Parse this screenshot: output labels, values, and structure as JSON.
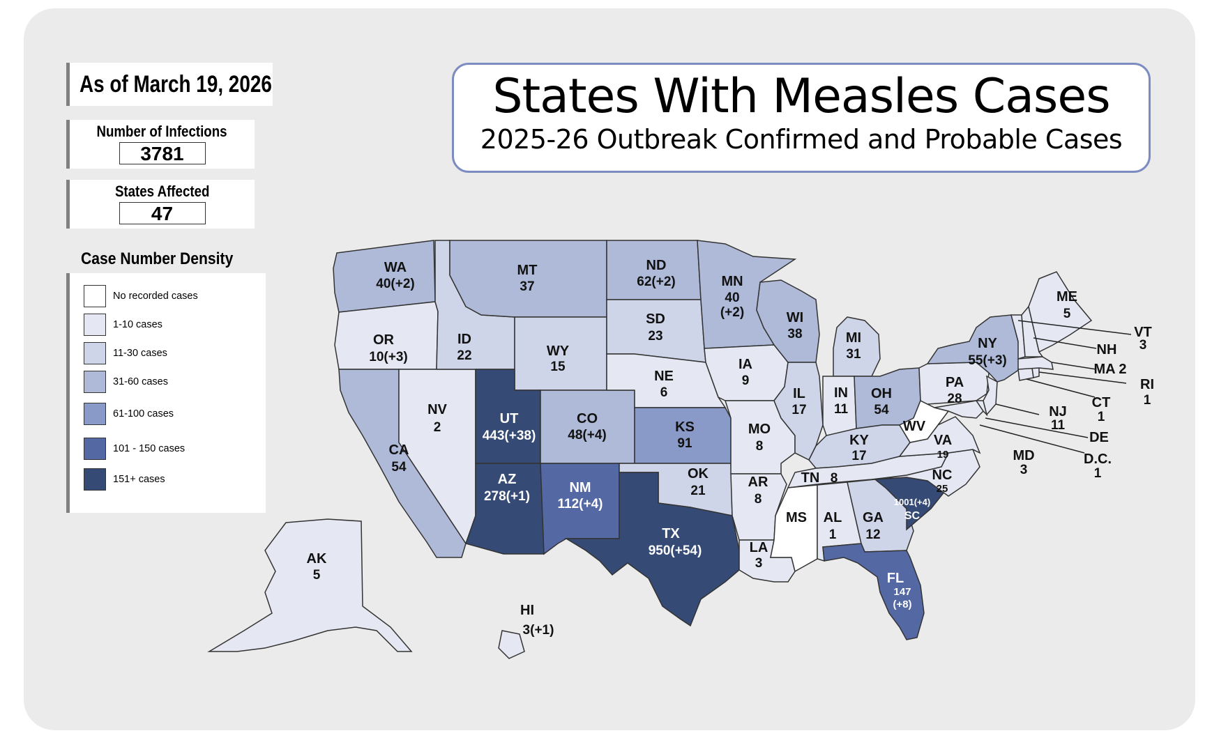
{
  "as_of": "As of March 19, 2026",
  "infections": {
    "label": "Number of Infections",
    "value": "3781"
  },
  "states_affected": {
    "label": "States Affected",
    "value": "47"
  },
  "legend": {
    "title": "Case Number Density",
    "items": [
      {
        "label": "No recorded cases",
        "color": "#ffffff"
      },
      {
        "label": "1-10 cases",
        "color": "#e5e8f2"
      },
      {
        "label": "11-30 cases",
        "color": "#cfd5e8"
      },
      {
        "label": "31-60 cases",
        "color": "#aebad8"
      },
      {
        "label": "61-100 cases",
        "color": "#8999c8"
      },
      {
        "label": "101 - 150 cases",
        "color": "#5468a4"
      },
      {
        "label": "151+ cases",
        "color": "#354a75"
      }
    ]
  },
  "title": "States With Measles Cases",
  "subtitle": "2025-26 Outbreak Confirmed and Probable Cases",
  "states": {
    "WA": {
      "abbr": "WA",
      "count": "40(+2)"
    },
    "OR": {
      "abbr": "OR",
      "count": "10(+3)"
    },
    "CA": {
      "abbr": "CA",
      "count": "54"
    },
    "NV": {
      "abbr": "NV",
      "count": "2"
    },
    "ID": {
      "abbr": "ID",
      "count": "22"
    },
    "MT": {
      "abbr": "MT",
      "count": "37"
    },
    "WY": {
      "abbr": "WY",
      "count": "15"
    },
    "UT": {
      "abbr": "UT",
      "count": "443(+38)"
    },
    "AZ": {
      "abbr": "AZ",
      "count": "278(+1)"
    },
    "CO": {
      "abbr": "CO",
      "count": "48(+4)"
    },
    "NM": {
      "abbr": "NM",
      "count": "112(+4)"
    },
    "ND": {
      "abbr": "ND",
      "count": "62(+2)"
    },
    "SD": {
      "abbr": "SD",
      "count": "23"
    },
    "NE": {
      "abbr": "NE",
      "count": "6"
    },
    "KS": {
      "abbr": "KS",
      "count": "91"
    },
    "OK": {
      "abbr": "OK",
      "count": "21"
    },
    "TX": {
      "abbr": "TX",
      "count": "950(+54)"
    },
    "MN": {
      "abbr": "MN",
      "count": "40",
      "count2": "(+2)"
    },
    "IA": {
      "abbr": "IA",
      "count": "9"
    },
    "MO": {
      "abbr": "MO",
      "count": "8"
    },
    "AR": {
      "abbr": "AR",
      "count": "8"
    },
    "LA": {
      "abbr": "LA",
      "count": "3"
    },
    "WI": {
      "abbr": "WI",
      "count": "38"
    },
    "IL": {
      "abbr": "IL",
      "count": "17"
    },
    "MI": {
      "abbr": "MI",
      "count": "31"
    },
    "IN": {
      "abbr": "IN",
      "count": "11"
    },
    "OH": {
      "abbr": "OH",
      "count": "54"
    },
    "KY": {
      "abbr": "KY",
      "count": "17"
    },
    "TN": {
      "abbr": "TN",
      "count": "8"
    },
    "MS": {
      "abbr": "MS",
      "count": ""
    },
    "AL": {
      "abbr": "AL",
      "count": "1"
    },
    "GA": {
      "abbr": "GA",
      "count": "12"
    },
    "FL": {
      "abbr": "FL",
      "count": "147",
      "count2": "(+8)"
    },
    "SC": {
      "abbr": "SC",
      "count": "1001(+4)"
    },
    "NC": {
      "abbr": "NC",
      "count": "25"
    },
    "VA": {
      "abbr": "VA",
      "count": "19"
    },
    "WV": {
      "abbr": "WV",
      "count": ""
    },
    "PA": {
      "abbr": "PA",
      "count": "28"
    },
    "NY": {
      "abbr": "NY",
      "count": "55(+3)"
    },
    "ME": {
      "abbr": "ME",
      "count": "5"
    },
    "VT": {
      "abbr": "VT",
      "count": "3"
    },
    "NH": {
      "abbr": "NH",
      "count": ""
    },
    "MA": {
      "abbr": "MA",
      "count": "MA 2"
    },
    "RI": {
      "abbr": "RI",
      "count": "1"
    },
    "CT": {
      "abbr": "CT",
      "count": "1"
    },
    "NJ": {
      "abbr": "NJ",
      "count": "11"
    },
    "DE": {
      "abbr": "DE",
      "count": ""
    },
    "MD": {
      "abbr": "MD",
      "count": "3"
    },
    "DC": {
      "abbr": "D.C.",
      "count": "1"
    },
    "AK": {
      "abbr": "AK",
      "count": "5"
    },
    "HI": {
      "abbr": "HI",
      "count": "3(+1)"
    }
  }
}
